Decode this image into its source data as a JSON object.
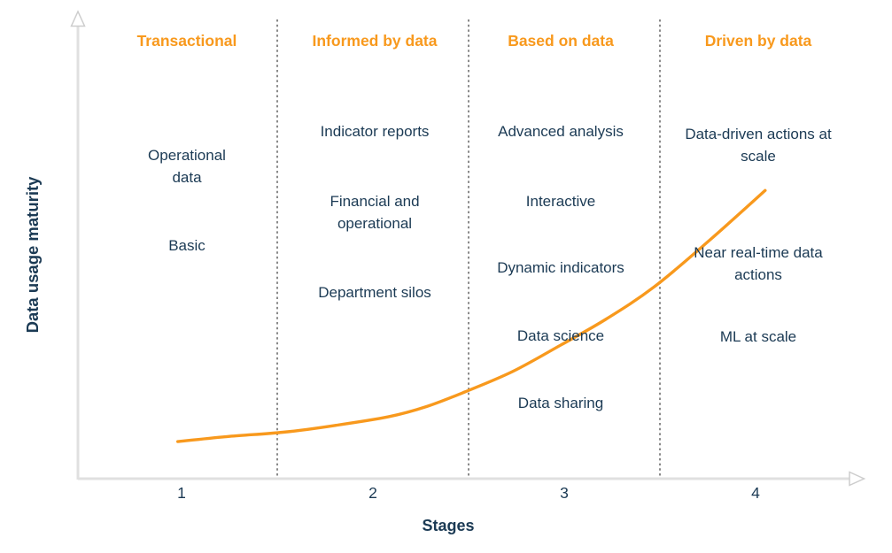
{
  "colors": {
    "accent": "#F8991D",
    "text": "#1B3A54",
    "divider": "#8A8A8A",
    "axis": "#E0E0E0"
  },
  "chart_data": {
    "type": "line",
    "title": "",
    "xlabel": "Stages",
    "ylabel": "Data usage maturity",
    "x_ticks": [
      "1",
      "2",
      "3",
      "4"
    ],
    "x_range": [
      0.5,
      4.55
    ],
    "y_range": [
      0,
      1
    ],
    "grid": false,
    "legend": false,
    "dividers_x": [
      1.5,
      2.5,
      3.5
    ],
    "stages": [
      {
        "tick": "1",
        "label": "Transactional",
        "items": [
          "Operational data",
          "Basic"
        ]
      },
      {
        "tick": "2",
        "label": "Informed by data",
        "items": [
          "Indicator reports",
          "Financial and operational",
          "Department silos"
        ]
      },
      {
        "tick": "3",
        "label": "Based on data",
        "items": [
          "Advanced analysis",
          "Interactive",
          "Dynamic indicators",
          "Data science",
          "Data sharing"
        ]
      },
      {
        "tick": "4",
        "label": "Driven by data",
        "items": [
          "Data-driven actions at scale",
          "Near real-time data actions",
          "ML at scale"
        ]
      }
    ],
    "series": [
      {
        "name": "Data usage maturity",
        "color": "#F8991D",
        "points": [
          [
            0.98,
            0.13
          ],
          [
            1.25,
            0.148
          ],
          [
            1.53,
            0.162
          ],
          [
            1.8,
            0.185
          ],
          [
            2.08,
            0.215
          ],
          [
            2.28,
            0.25
          ],
          [
            2.48,
            0.3
          ],
          [
            2.73,
            0.37
          ],
          [
            2.98,
            0.46
          ],
          [
            3.22,
            0.55
          ],
          [
            3.47,
            0.66
          ],
          [
            3.76,
            0.82
          ],
          [
            4.05,
            0.99
          ]
        ]
      }
    ]
  }
}
